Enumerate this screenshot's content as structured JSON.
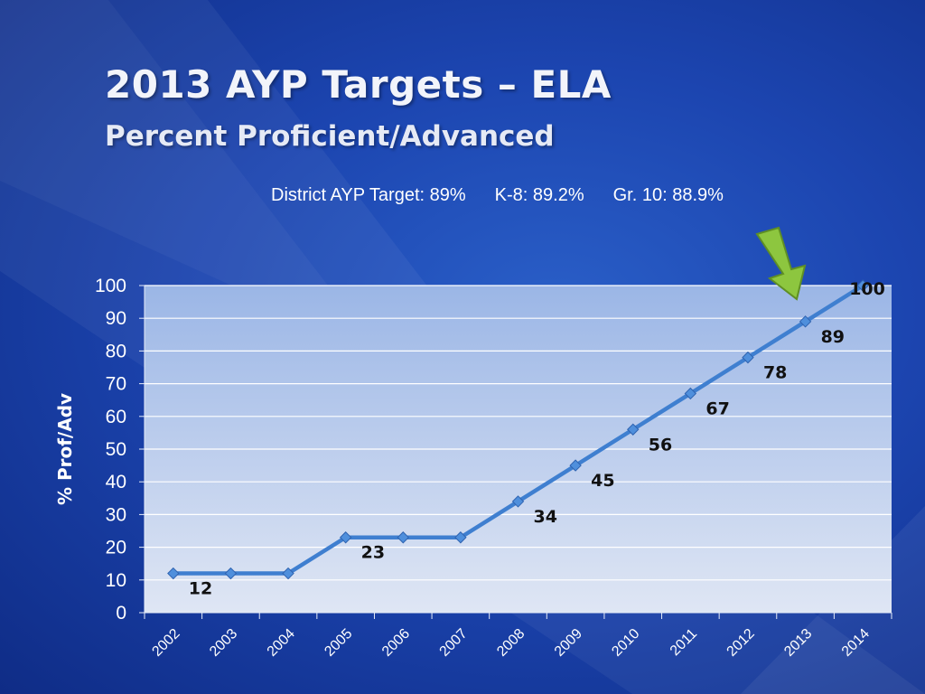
{
  "slide": {
    "title": "2013 AYP Targets – ELA",
    "subtitle": "Percent Proficient/Advanced",
    "targets": {
      "district": "District AYP Target:  89%",
      "k8": "K-8:  89.2%",
      "gr10": "Gr. 10:  88.9%"
    },
    "accent_colors": {
      "background": "#1c45b0",
      "line": "#3f7fd0",
      "arrow": "#8dc63f"
    }
  },
  "chart_data": {
    "type": "line",
    "title": "",
    "xlabel": "",
    "ylabel": "% Prof/Adv",
    "categories": [
      "2002",
      "2003",
      "2004",
      "2005",
      "2006",
      "2007",
      "2008",
      "2009",
      "2010",
      "2011",
      "2012",
      "2013",
      "2014"
    ],
    "series": [
      {
        "values": [
          12,
          12,
          12,
          23,
          23,
          23,
          34,
          45,
          56,
          67,
          78,
          89,
          100
        ]
      }
    ],
    "data_labels": {
      "2002": 12,
      "2005": 23,
      "2008": 34,
      "2009": 45,
      "2010": 56,
      "2011": 67,
      "2012": 78,
      "2013": 89,
      "2014": 100
    },
    "ylim": [
      0,
      100
    ],
    "yticks": [
      0,
      10,
      20,
      30,
      40,
      50,
      60,
      70,
      80,
      90,
      100
    ],
    "grid": true,
    "legend": "none",
    "annotation": "arrow pointing at 2013 value"
  }
}
